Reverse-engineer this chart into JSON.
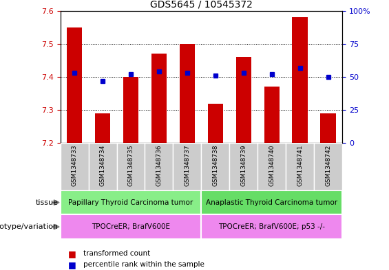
{
  "title": "GDS5645 / 10545372",
  "samples": [
    "GSM1348733",
    "GSM1348734",
    "GSM1348735",
    "GSM1348736",
    "GSM1348737",
    "GSM1348738",
    "GSM1348739",
    "GSM1348740",
    "GSM1348741",
    "GSM1348742"
  ],
  "transformed_count": [
    7.55,
    7.29,
    7.4,
    7.47,
    7.5,
    7.32,
    7.46,
    7.37,
    7.58,
    7.29
  ],
  "percentile_rank": [
    53,
    47,
    52,
    54,
    53,
    51,
    53,
    52,
    57,
    50
  ],
  "ylim": [
    7.2,
    7.6
  ],
  "y2lim": [
    0,
    100
  ],
  "yticks": [
    7.2,
    7.3,
    7.4,
    7.5,
    7.6
  ],
  "y2ticks": [
    0,
    25,
    50,
    75,
    100
  ],
  "y2tick_labels": [
    "0",
    "25",
    "50",
    "75",
    "100%"
  ],
  "bar_color": "#cc0000",
  "dot_color": "#0000cc",
  "bar_width": 0.55,
  "tissue_labels": [
    {
      "text": "Papillary Thyroid Carcinoma tumor",
      "start": 0,
      "end": 4,
      "color": "#88ee88"
    },
    {
      "text": "Anaplastic Thyroid Carcinoma tumor",
      "start": 5,
      "end": 9,
      "color": "#66dd66"
    }
  ],
  "genotype_labels": [
    {
      "text": "TPOCreER; BrafV600E",
      "start": 0,
      "end": 4,
      "color": "#ee88ee"
    },
    {
      "text": "TPOCreER; BrafV600E; p53 -/-",
      "start": 5,
      "end": 9,
      "color": "#ee88ee"
    }
  ],
  "tissue_row_label": "tissue",
  "genotype_row_label": "genotype/variation",
  "legend_items": [
    {
      "label": "transformed count",
      "color": "#cc0000"
    },
    {
      "label": "percentile rank within the sample",
      "color": "#0000cc"
    }
  ],
  "sample_bg_color": "#cccccc",
  "left_axis_color": "#cc0000",
  "right_axis_color": "#0000cc",
  "title_fontsize": 10,
  "axis_fontsize": 8,
  "sample_fontsize": 6.5,
  "annotation_fontsize": 8,
  "legend_fontsize": 8
}
